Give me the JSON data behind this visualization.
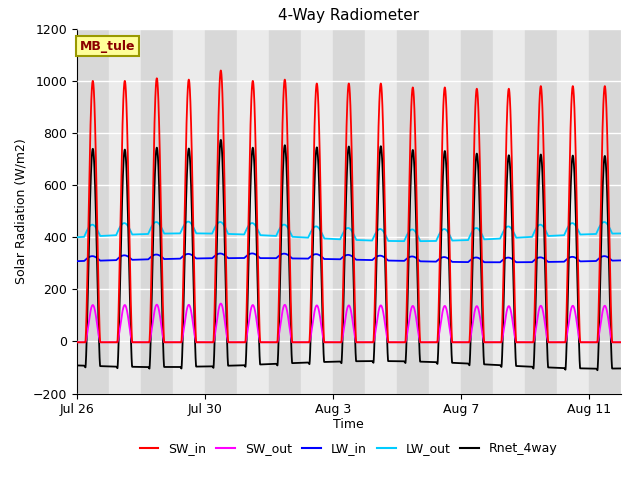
{
  "title": "4-Way Radiometer",
  "xlabel": "Time",
  "ylabel": "Solar Radiation (W/m2)",
  "ylim": [
    -200,
    1200
  ],
  "site_label": "MB_tule",
  "xtick_labels": [
    "Jul 26",
    "Jul 30",
    "Aug 3",
    "Aug 7",
    "Aug 11"
  ],
  "xtick_positions": [
    0,
    4,
    8,
    12,
    16
  ],
  "colors": {
    "SW_in": "#ff0000",
    "SW_out": "#ff00ff",
    "LW_in": "#0000ff",
    "LW_out": "#00ccff",
    "Rnet_4way": "#000000"
  },
  "n_days": 17,
  "dt_hours": 0.1,
  "band_color_dark": "#d8d8d8",
  "band_color_light": "#ebebeb",
  "plot_bg": "#e8e8e8",
  "grid_color": "#ffffff"
}
